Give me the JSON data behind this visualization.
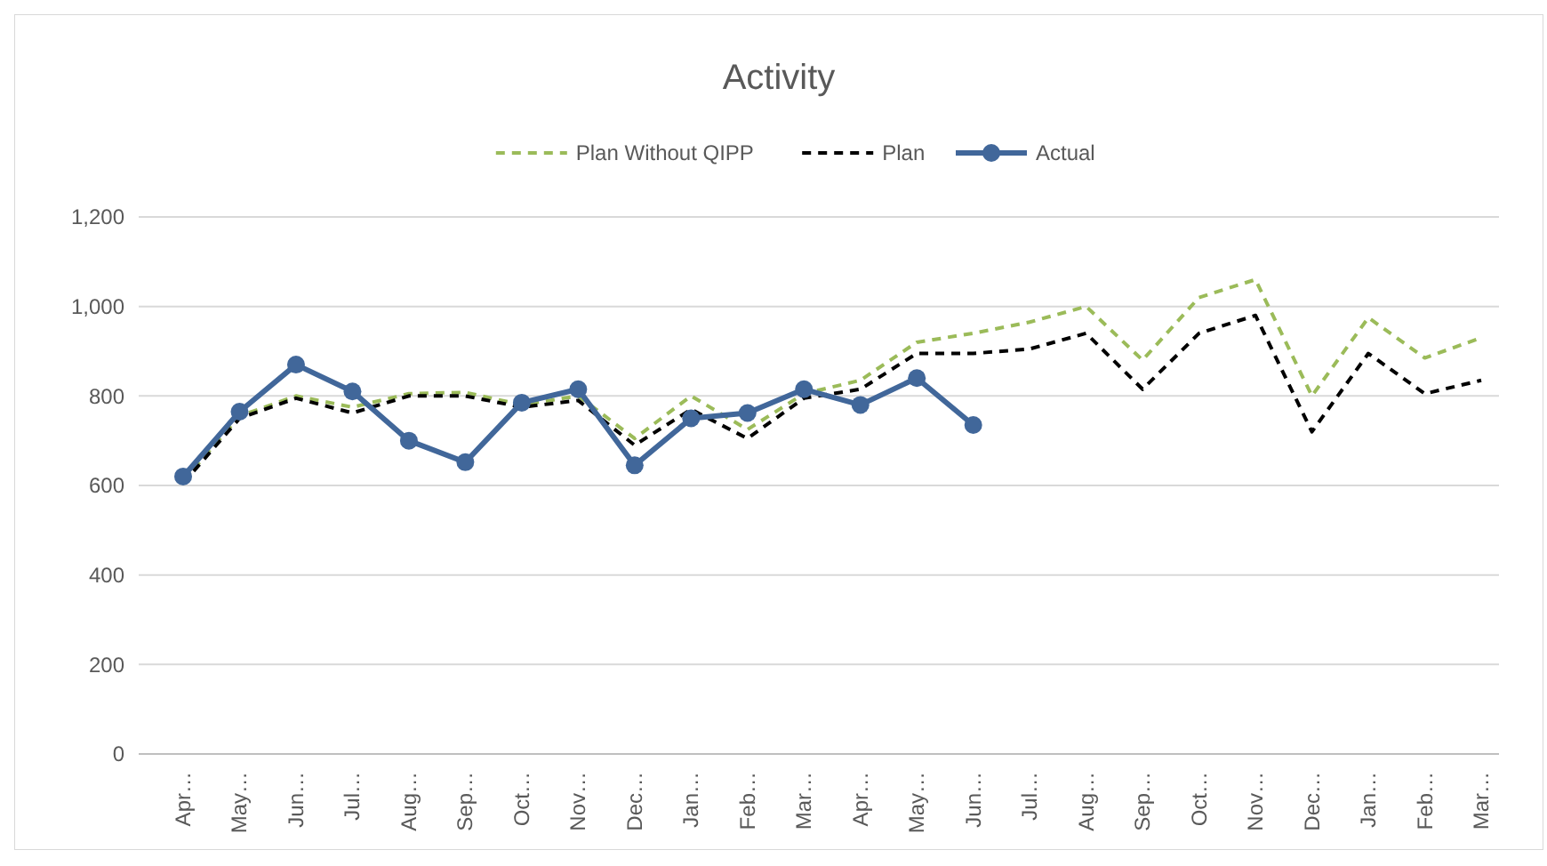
{
  "chart_data": {
    "type": "line",
    "title": "Activity",
    "categories": [
      "Apr…",
      "May…",
      "Jun…",
      "Jul…",
      "Aug…",
      "Sep…",
      "Oct…",
      "Nov…",
      "Dec…",
      "Jan…",
      "Feb…",
      "Mar…",
      "Apr…",
      "May…",
      "Jun…",
      "Jul…",
      "Aug…",
      "Sep…",
      "Oct…",
      "Nov…",
      "Dec…",
      "Jan…",
      "Feb…",
      "Mar…"
    ],
    "series": [
      {
        "name": "Plan Without QIPP",
        "color": "#9bbb59",
        "line_style": "dashed",
        "marker": "none",
        "values": [
          610,
          755,
          800,
          775,
          805,
          808,
          780,
          800,
          705,
          800,
          725,
          805,
          835,
          920,
          940,
          965,
          1000,
          880,
          1020,
          1060,
          800,
          975,
          885,
          930
        ]
      },
      {
        "name": "Plan",
        "color": "#000000",
        "line_style": "dashed",
        "marker": "none",
        "values": [
          605,
          750,
          795,
          762,
          800,
          800,
          775,
          790,
          690,
          770,
          705,
          795,
          815,
          895,
          895,
          905,
          940,
          815,
          940,
          980,
          720,
          895,
          805,
          835
        ]
      },
      {
        "name": "Actual",
        "color": "#41679a",
        "line_style": "solid",
        "marker": "circle",
        "values": [
          620,
          765,
          870,
          810,
          700,
          652,
          785,
          815,
          645,
          750,
          762,
          815,
          780,
          840,
          735,
          null,
          null,
          null,
          null,
          null,
          null,
          null,
          null,
          null
        ]
      }
    ],
    "ylim": [
      0,
      1200
    ],
    "yticks": [
      {
        "value": 0,
        "label": "0"
      },
      {
        "value": 200,
        "label": "200"
      },
      {
        "value": 400,
        "label": "400"
      },
      {
        "value": 600,
        "label": "600"
      },
      {
        "value": 800,
        "label": "800"
      },
      {
        "value": 1000,
        "label": "1,000"
      },
      {
        "value": 1200,
        "label": "1,200"
      }
    ],
    "grid": "y",
    "legend": "top"
  }
}
